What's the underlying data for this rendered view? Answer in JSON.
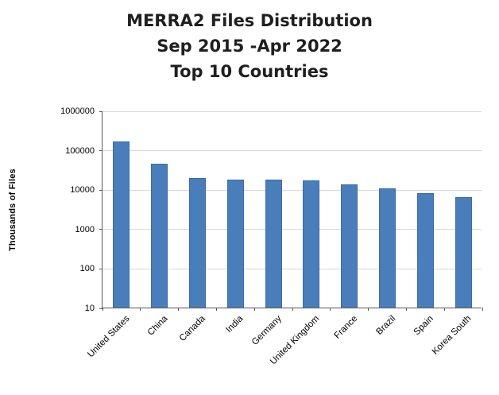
{
  "chart_data": {
    "type": "bar",
    "title_lines": [
      "MERRA2 Files Distribution",
      "Sep 2015 -Apr 2022",
      "Top 10 Countries"
    ],
    "ylabel": "Thousands of Files",
    "xlabel": "",
    "categories": [
      "United States",
      "China",
      "Canada",
      "India",
      "Germany",
      "United Kingdom",
      "France",
      "Brazil",
      "Spain",
      "Korea South"
    ],
    "values": [
      160000,
      45000,
      19000,
      18000,
      18000,
      17000,
      13500,
      10500,
      8000,
      6300
    ],
    "y_scale": "log",
    "ylim": [
      10,
      1000000
    ],
    "yticks": [
      10,
      100,
      1000,
      10000,
      100000,
      1000000
    ],
    "grid": true,
    "legend_position": "none",
    "bar_color": "#4a7ebb"
  }
}
